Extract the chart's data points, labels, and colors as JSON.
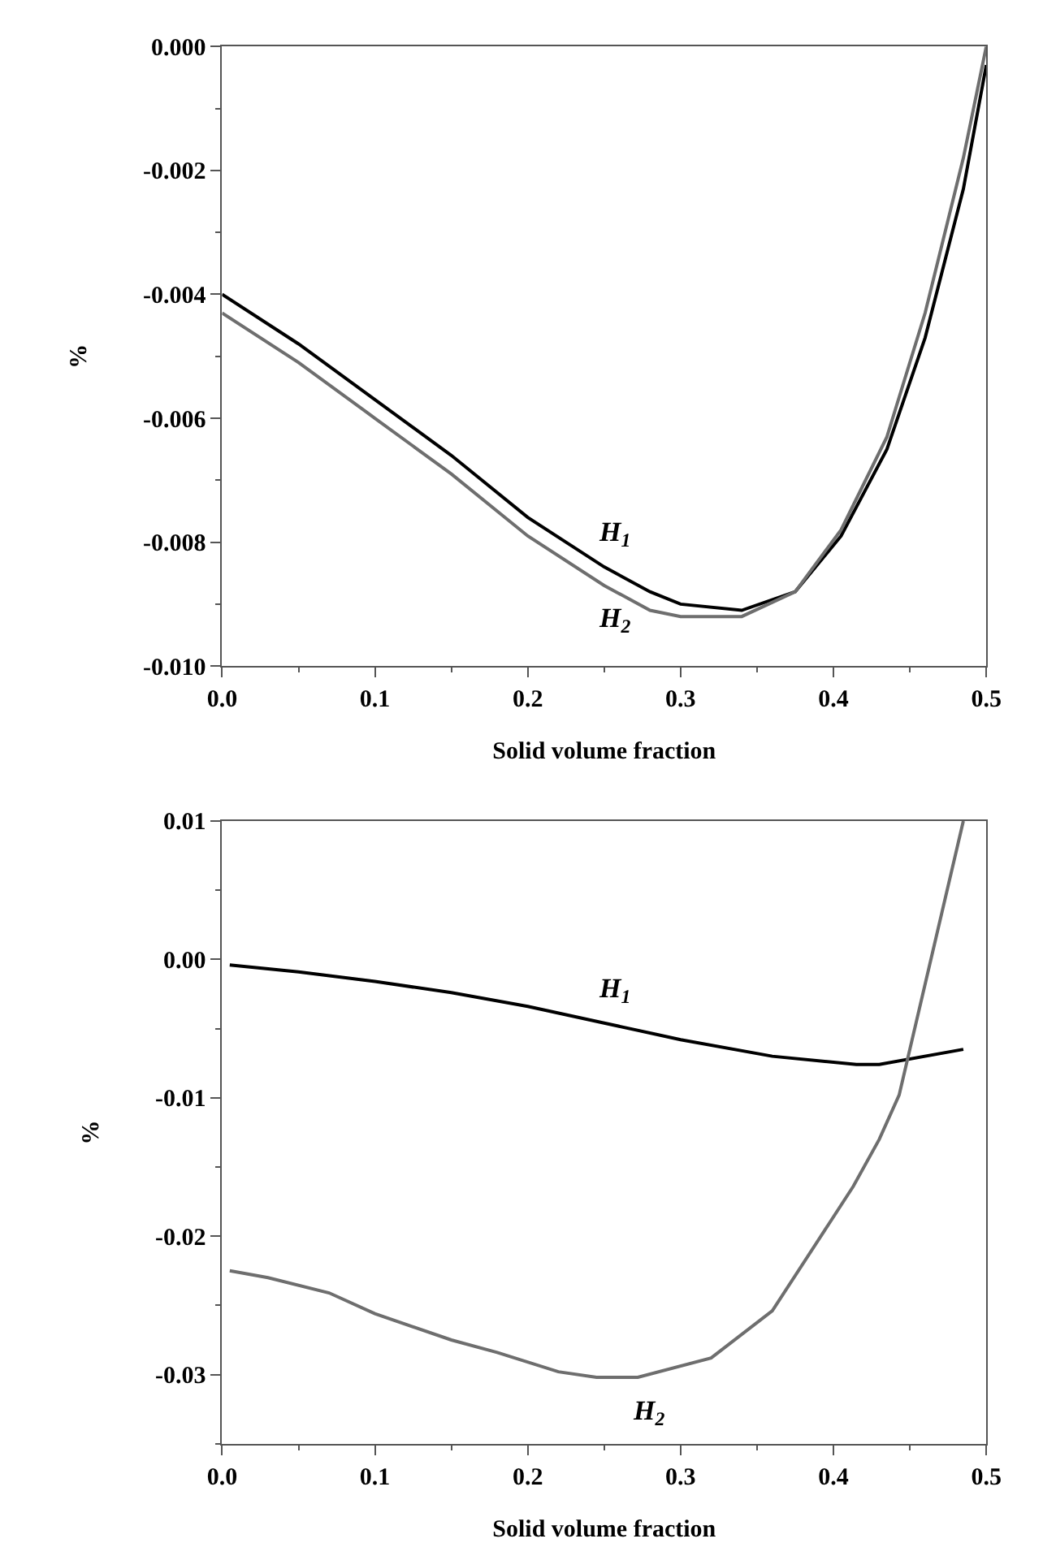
{
  "chart_data": [
    {
      "type": "line",
      "xlabel": "Solid volume fraction",
      "ylabel": "%",
      "xlim": [
        0,
        0.5
      ],
      "xticks": [
        {
          "value": 0,
          "label": "0.0"
        },
        0.1,
        0.2,
        0.3,
        0.4,
        0.5
      ],
      "ylim": [
        -0.01,
        0
      ],
      "yticks": [
        {
          "value": -0.01,
          "label": "-0.010"
        },
        {
          "value": -0.008,
          "label": "-0.008"
        },
        {
          "value": -0.006,
          "label": "-0.006"
        },
        {
          "value": -0.004,
          "label": "-0.004"
        },
        {
          "value": -0.002,
          "label": "-0.002"
        },
        {
          "value": 0,
          "label": "0.000"
        }
      ],
      "legend": false,
      "marker": "none",
      "line_style": "solid",
      "series": [
        {
          "name": "H$_{1}$",
          "color": "#000000",
          "x": [
            0,
            0.05,
            0.1,
            0.15,
            0.2,
            0.25,
            0.28,
            0.3,
            0.34,
            0.375,
            0.405,
            0.435,
            0.46,
            0.485,
            0.5
          ],
          "values": [
            -0.004,
            -0.0048,
            -0.0057,
            -0.0066,
            -0.0076,
            -0.0084,
            -0.0088,
            -0.009,
            -0.0091,
            -0.0088,
            -0.0079,
            -0.0065,
            -0.0047,
            -0.0023,
            -0.0003
          ]
        },
        {
          "name": "H$_{2}$",
          "color": "#6e6e6e",
          "x": [
            0,
            0.05,
            0.1,
            0.15,
            0.2,
            0.25,
            0.28,
            0.3,
            0.34,
            0.375,
            0.405,
            0.435,
            0.46,
            0.485,
            0.5
          ],
          "values": [
            -0.0043,
            -0.0051,
            -0.006,
            -0.0069,
            -0.0079,
            -0.0087,
            -0.0091,
            -0.0092,
            -0.0092,
            -0.0088,
            -0.0078,
            -0.0063,
            -0.0043,
            -0.0018,
            0
          ]
        }
      ]
    },
    {
      "type": "line",
      "xlabel": "Solid volume fraction",
      "ylabel": "%",
      "xlim": [
        0,
        0.5
      ],
      "xticks": [
        {
          "value": 0,
          "label": "0.0"
        },
        0.1,
        0.2,
        0.3,
        0.4,
        0.5
      ],
      "ylim": [
        -0.035,
        0.01
      ],
      "yticks": [
        -0.03,
        -0.02,
        -0.01,
        {
          "value": 0,
          "label": "0.00"
        },
        0.01
      ],
      "legend": false,
      "marker": "none",
      "line_style": "solid",
      "series": [
        {
          "name": "H$_{1}$",
          "color": "#000000",
          "x": [
            0.005,
            0.05,
            0.1,
            0.15,
            0.2,
            0.25,
            0.3,
            0.36,
            0.415,
            0.43,
            0.485
          ],
          "values": [
            -0.0004,
            -0.0009,
            -0.0016,
            -0.0024,
            -0.0034,
            -0.0046,
            -0.0058,
            -0.007,
            -0.0076,
            -0.0076,
            -0.0065
          ]
        },
        {
          "name": "H$_{2}$",
          "color": "#6e6e6e",
          "x": [
            0.005,
            0.03,
            0.07,
            0.1,
            0.15,
            0.18,
            0.22,
            0.245,
            0.272,
            0.32,
            0.36,
            0.413,
            0.43,
            0.443,
            0.485
          ],
          "values": [
            -0.0225,
            -0.023,
            -0.0241,
            -0.0256,
            -0.0275,
            -0.0284,
            -0.0298,
            -0.0302,
            -0.0302,
            -0.0288,
            -0.0254,
            -0.0164,
            -0.013,
            -0.0098,
            0.01
          ]
        }
      ]
    }
  ]
}
